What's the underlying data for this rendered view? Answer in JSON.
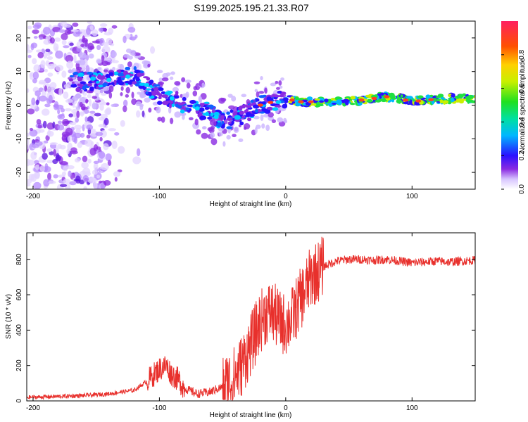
{
  "title": "S199.2025.195.21.33.R07",
  "chart_data": [
    {
      "type": "heatmap",
      "xlabel": "Height of straight line (km)",
      "ylabel": "Frequency (Hz)",
      "xlim": [
        -205,
        150
      ],
      "ylim": [
        -25,
        25
      ],
      "xticks": [
        -200,
        -100,
        0,
        100
      ],
      "yticks": [
        -20,
        -10,
        0,
        10,
        20
      ],
      "colorbar": {
        "label": "Normalized spectral amplitude",
        "range": [
          0,
          1
        ],
        "ticks": [
          "0.0",
          "0.2",
          "0.4",
          "0.6",
          "0.8"
        ],
        "colormap": "rainbow"
      },
      "ridge": {
        "x": [
          -170,
          -150,
          -130,
          -120,
          -110,
          -100,
          -90,
          -80,
          -70,
          -60,
          -50,
          -40,
          -30,
          -20,
          -10,
          0,
          10,
          20,
          40,
          60,
          80,
          90,
          100,
          110,
          130,
          150
        ],
        "y": [
          7,
          7,
          8,
          9,
          6,
          3,
          2,
          0,
          -1,
          -2,
          -5,
          -4,
          -2,
          0,
          1,
          2,
          1,
          1,
          1,
          1.5,
          2.5,
          2,
          1,
          1.5,
          2,
          2
        ]
      }
    },
    {
      "type": "line",
      "xlabel": "Height of straight line (km)",
      "ylabel": "SNR (10 * v/v)",
      "xlim": [
        -205,
        150
      ],
      "ylim": [
        0,
        950
      ],
      "xticks": [
        -200,
        -100,
        0,
        100
      ],
      "yticks": [
        0,
        200,
        400,
        600,
        800
      ],
      "color": "#e8302c",
      "series": [
        {
          "x": [
            -205,
            -180,
            -160,
            -140,
            -120,
            -110,
            -100,
            -95,
            -90,
            -85,
            -80,
            -70,
            -60,
            -50,
            -40,
            -35,
            -30,
            -25,
            -20,
            -15,
            -10,
            -5,
            0,
            5,
            10,
            15,
            20,
            30,
            40,
            50,
            60,
            70,
            80,
            90,
            100,
            110,
            120,
            130,
            140,
            150
          ],
          "y": [
            20,
            25,
            30,
            40,
            60,
            110,
            180,
            200,
            150,
            120,
            70,
            40,
            50,
            80,
            140,
            200,
            280,
            360,
            450,
            500,
            500,
            450,
            430,
            470,
            550,
            620,
            700,
            760,
            790,
            800,
            800,
            795,
            800,
            790,
            780,
            785,
            790,
            785,
            790,
            795
          ]
        }
      ]
    }
  ]
}
